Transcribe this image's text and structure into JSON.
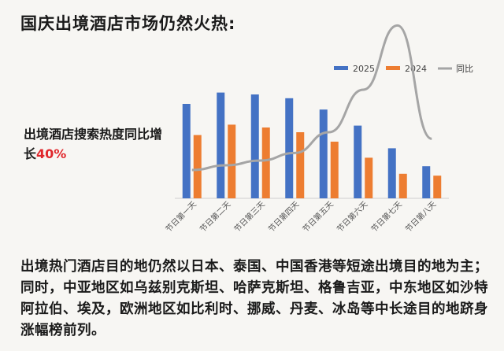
{
  "header": {
    "title": "国庆出境酒店市场仍然火热:"
  },
  "stat": {
    "prefix": "出境酒店搜索热度同比增长",
    "highlight": "40%"
  },
  "description": "出境热门酒店目的地仍然以日本、泰国、中国香港等短途出境目的地为主；同时，中亚地区如乌兹别克斯坦、哈萨克斯坦、格鲁吉亚，中东地区如沙特阿拉伯、埃及，欧洲地区如比利时、挪威、丹麦、冰岛等中长途目的地跻身涨幅榜前列。",
  "colors": {
    "s2025": "#4472c4",
    "s2024": "#ed7d31",
    "yoy": "#a5a5a5",
    "highlight": "#e0262b"
  },
  "chart_data": {
    "type": "bar",
    "categories": [
      "节日第一天",
      "节日第二天",
      "节日第三天",
      "节日第四天",
      "节日第五天",
      "节日第六天",
      "节日第七天",
      "节日第八天"
    ],
    "series": [
      {
        "name": "2025",
        "type": "bar",
        "values": [
          100,
          112,
          110,
          106,
          94,
          77,
          53,
          34
        ]
      },
      {
        "name": "2024",
        "type": "bar",
        "values": [
          67,
          78,
          75,
          70,
          60,
          43,
          26,
          24
        ]
      },
      {
        "name": "同比",
        "type": "line",
        "values": [
          30,
          35,
          40,
          48,
          70,
          115,
          183,
          63
        ]
      }
    ],
    "ylim": [
      0,
      130
    ],
    "legend": "top",
    "grid": false
  }
}
